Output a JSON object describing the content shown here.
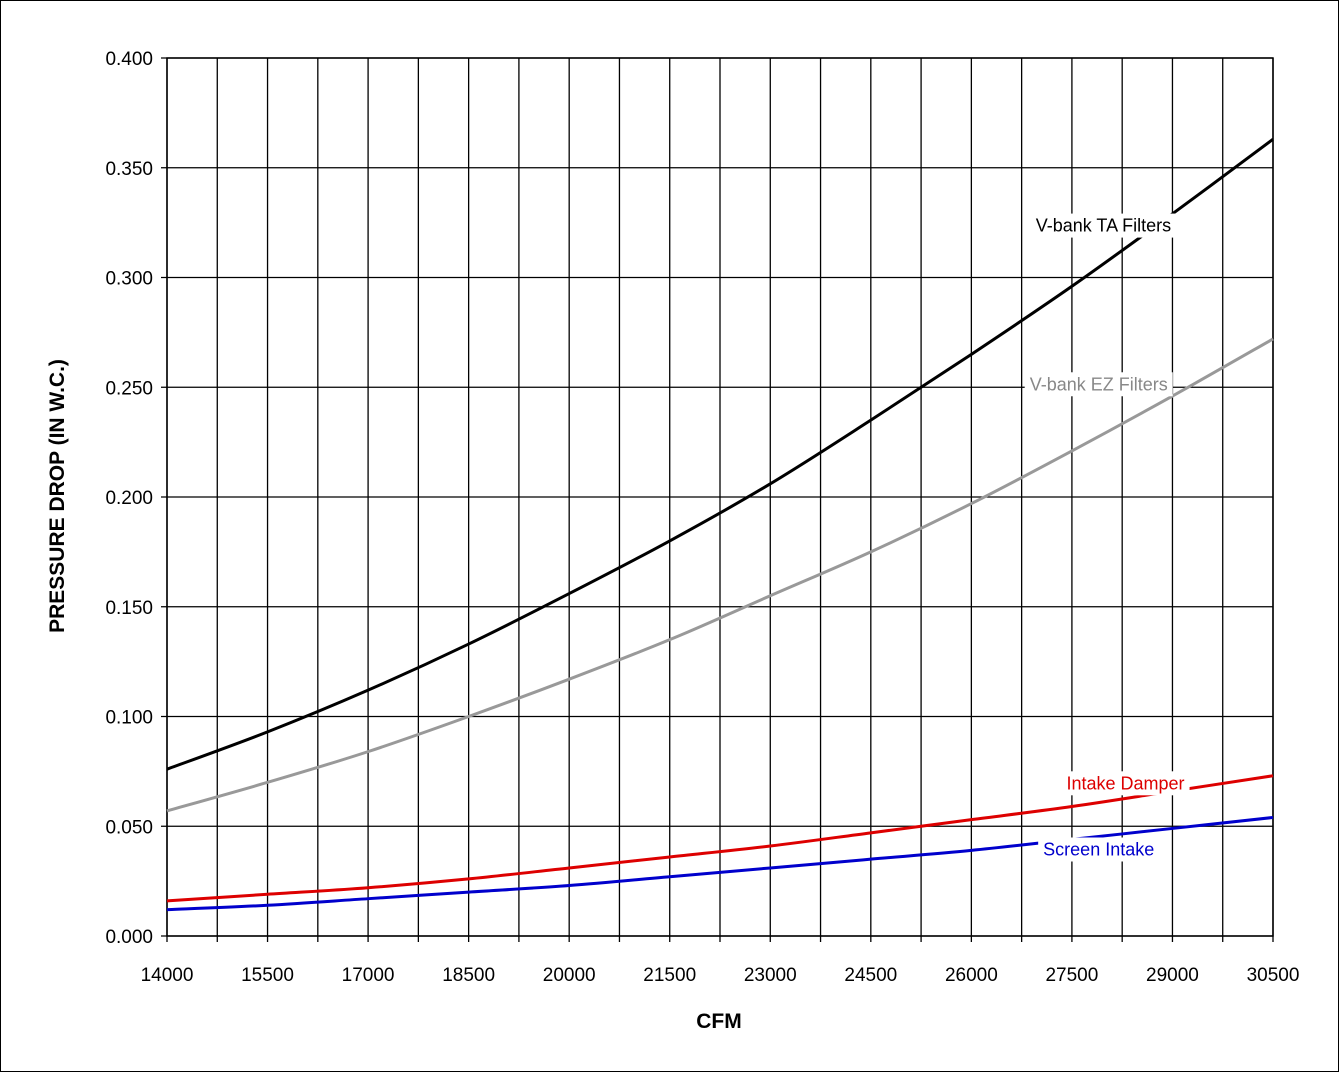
{
  "chart_data": {
    "type": "line",
    "title": "",
    "xlabel": "CFM",
    "ylabel": "PRESSURE DROP (IN W.C.)",
    "xlim": [
      14000,
      30500
    ],
    "ylim": [
      0,
      0.4
    ],
    "x_ticks": [
      "14000",
      "15500",
      "17000",
      "18500",
      "20000",
      "21500",
      "23000",
      "24500",
      "26000",
      "27500",
      "29000",
      "30500"
    ],
    "y_ticks": [
      "0.000",
      "0.050",
      "0.100",
      "0.150",
      "0.200",
      "0.250",
      "0.300",
      "0.350",
      "0.400"
    ],
    "grid": true,
    "legend": "inline labels",
    "x": [
      14000,
      15500,
      17000,
      18500,
      20000,
      21500,
      23000,
      24500,
      26000,
      27500,
      29000,
      30500
    ],
    "series": [
      {
        "name": "V-bank TA Filters",
        "color": "#000000",
        "values": [
          0.076,
          0.093,
          0.112,
          0.133,
          0.156,
          0.18,
          0.206,
          0.235,
          0.265,
          0.296,
          0.329,
          0.363
        ]
      },
      {
        "name": "V-bank EZ Filters",
        "color": "#999999",
        "values": [
          0.057,
          0.07,
          0.084,
          0.1,
          0.117,
          0.135,
          0.155,
          0.175,
          0.197,
          0.221,
          0.246,
          0.272
        ]
      },
      {
        "name": "Intake Damper",
        "color": "#dd0000",
        "values": [
          0.016,
          0.019,
          0.022,
          0.026,
          0.031,
          0.036,
          0.041,
          0.047,
          0.053,
          0.059,
          0.066,
          0.073
        ]
      },
      {
        "name": "Screen Intake",
        "color": "#0000cc",
        "values": [
          0.012,
          0.014,
          0.017,
          0.02,
          0.023,
          0.027,
          0.031,
          0.035,
          0.039,
          0.044,
          0.049,
          0.054
        ]
      }
    ]
  }
}
